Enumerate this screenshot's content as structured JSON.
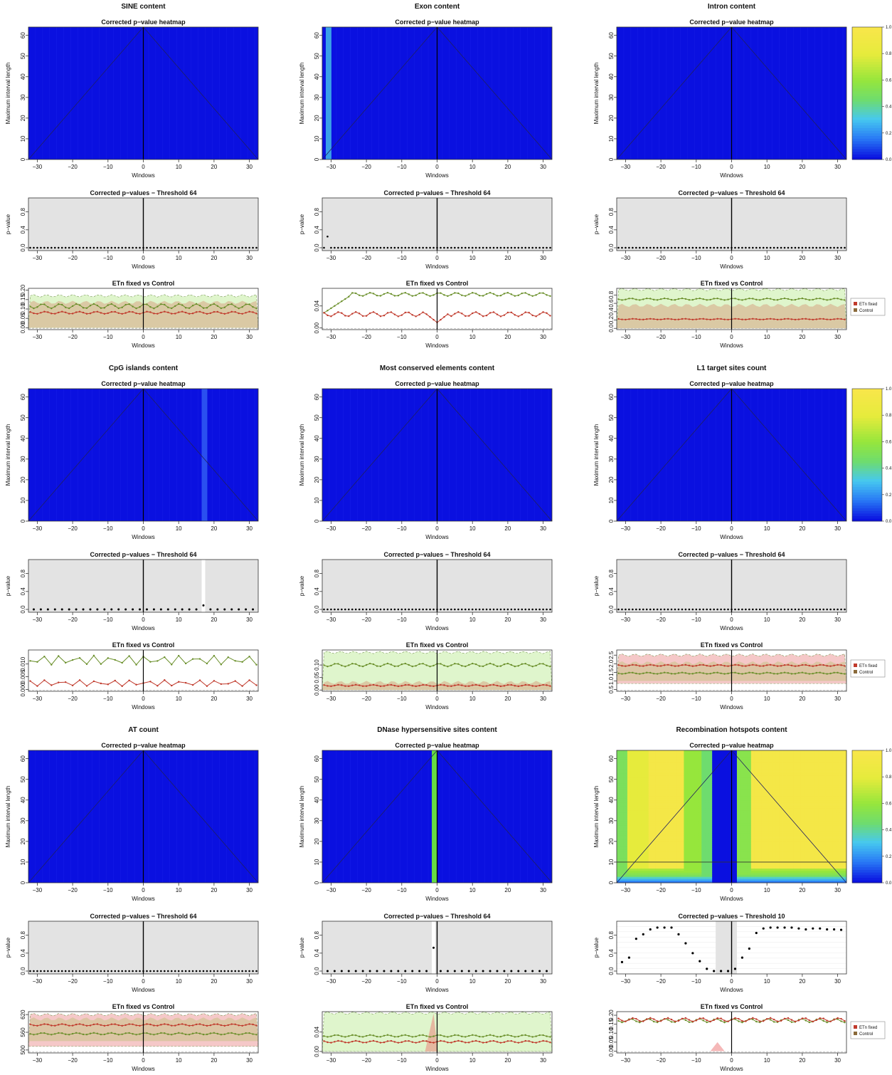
{
  "figure": {
    "panels": [
      {
        "title": "SINE content",
        "heatmap": {
          "title": "Corrected p−value heatmap",
          "mode": "blue",
          "stripes": []
        },
        "pvals": {
          "title": "Corrected p−values − Threshold 64",
          "mode": "zero",
          "band": null,
          "special": [
            [
              -31,
              0.0
            ]
          ]
        },
        "comp": {
          "title": "ETn fixed vs Control",
          "yticks": [
            "0.00",
            "0.05",
            "0.10",
            "0.15",
            "0.20"
          ],
          "ylim": [
            -0.01,
            0.21
          ],
          "red": {
            "base": 0.08,
            "amp": 0.006
          },
          "green": {
            "base": 0.115,
            "amp": 0.012
          },
          "ctrlBand": [
            0.0,
            0.17
          ],
          "ctrlColor": "#dff5cc",
          "etnBand": [
            0.0,
            0.135
          ],
          "legend": false
        }
      },
      {
        "title": "Exon content",
        "heatmap": {
          "title": "Corrected p−value heatmap",
          "mode": "blue",
          "stripes": [
            {
              "w": -31,
              "color": "#3aa0e8"
            }
          ]
        },
        "pvals": {
          "title": "Corrected p−values − Threshold 64",
          "mode": "zero",
          "band": null,
          "special": [
            [
              -31,
              0.25
            ]
          ]
        },
        "comp": {
          "title": "ETn fixed vs Control",
          "yticks": [
            "0.00",
            "0.04"
          ],
          "ylim": [
            -0.003,
            0.072
          ],
          "red": {
            "base": 0.025,
            "amp": 0.004,
            "dip": [
              0,
              0.01
            ]
          },
          "green": {
            "base": 0.061,
            "amp": 0.003,
            "ramp": true
          },
          "ctrlBand": null,
          "ctrlColor": null,
          "etnBand": null,
          "legend": false
        }
      },
      {
        "title": "Intron content",
        "heatmap": {
          "title": "Corrected p−value heatmap",
          "mode": "blue",
          "stripes": []
        },
        "pvals": {
          "title": "Corrected p−values − Threshold 64",
          "mode": "zero",
          "band": null,
          "special": []
        },
        "comp": {
          "title": "ETn fixed vs Control",
          "yticks": [
            "0.0",
            "0.2",
            "0.4",
            "0.6",
            "0.8"
          ],
          "ylim": [
            -0.03,
            0.96
          ],
          "red": {
            "base": 0.22,
            "amp": 0.01
          },
          "green": {
            "base": 0.7,
            "amp": 0.02
          },
          "ctrlBand": [
            0.0,
            0.93
          ],
          "ctrlColor": "#dff5cc",
          "etnBand": [
            0.0,
            0.55
          ],
          "legend": true
        }
      },
      {
        "title": "CpG islands content",
        "heatmap": {
          "title": "Corrected p−value heatmap",
          "mode": "blue",
          "stripes": [
            {
              "w": 17,
              "color": "#2a50f0"
            }
          ]
        },
        "pvals": {
          "title": "Corrected p−values − Threshold 64",
          "mode": "zero",
          "band": [
            17,
            17
          ],
          "special": [
            [
              17,
              0.09
            ]
          ]
        },
        "comp": {
          "title": "ETn fixed vs Control",
          "yticks": [
            "0.000",
            "0.005",
            "0.010"
          ],
          "ylim": [
            -0.0007,
            0.0155
          ],
          "red": {
            "base": 0.0025,
            "amp": 0.0012
          },
          "green": {
            "base": 0.0115,
            "amp": 0.0018
          },
          "ctrlBand": null,
          "ctrlColor": null,
          "etnBand": null,
          "legend": false
        }
      },
      {
        "title": "Most conserved elements content",
        "heatmap": {
          "title": "Corrected p−value heatmap",
          "mode": "blue",
          "stripes": []
        },
        "pvals": {
          "title": "Corrected p−values − Threshold 64",
          "mode": "zero",
          "band": null,
          "special": []
        },
        "comp": {
          "title": "ETn fixed vs Control",
          "yticks": [
            "0.00",
            "0.05",
            "0.10"
          ],
          "ylim": [
            -0.005,
            0.16
          ],
          "red": {
            "base": 0.018,
            "amp": 0.003
          },
          "green": {
            "base": 0.1,
            "amp": 0.006
          },
          "ctrlBand": [
            0.0,
            0.15
          ],
          "ctrlColor": "#dff5cc",
          "etnBand": [
            0.0,
            0.03
          ],
          "legend": false
        }
      },
      {
        "title": "L1 target sites count",
        "heatmap": {
          "title": "Corrected p−value heatmap",
          "mode": "blue",
          "stripes": []
        },
        "pvals": {
          "title": "Corrected p−values − Threshold 64",
          "mode": "zero",
          "band": null,
          "special": []
        },
        "comp": {
          "title": "ETn fixed vs Control",
          "yticks": [
            "0.5",
            "1.0",
            "1.5",
            "2.0",
            "2.5"
          ],
          "ylim": [
            0.4,
            2.8
          ],
          "red": {
            "base": 1.9,
            "amp": 0.04
          },
          "green": {
            "base": 1.45,
            "amp": 0.04
          },
          "ctrlBand": [
            0.85,
            2.5
          ],
          "ctrlColor": "#f5c8c8",
          "etnBand": [
            1.0,
            2.05
          ],
          "legend": true
        }
      },
      {
        "title": "AT count",
        "heatmap": {
          "title": "Corrected p−value heatmap",
          "mode": "blue",
          "stripes": []
        },
        "pvals": {
          "title": "Corrected p−values − Threshold 64",
          "mode": "zero",
          "band": null,
          "special": []
        },
        "comp": {
          "title": "ETn fixed vs Control",
          "yticks": [
            "500",
            "560",
            "620"
          ],
          "ylim": [
            490,
            630
          ],
          "red": {
            "base": 585,
            "amp": 3
          },
          "green": {
            "base": 555,
            "amp": 3
          },
          "ctrlBand": [
            512,
            620
          ],
          "ctrlColor": "#f5c8c8",
          "etnBand": [
            530,
            605
          ],
          "legend": false
        }
      },
      {
        "title": "DNase hypersensitive sites content",
        "heatmap": {
          "title": "Corrected p−value heatmap",
          "mode": "blue",
          "stripes": [
            {
              "w": -1,
              "color": "#66dd44"
            }
          ]
        },
        "pvals": {
          "title": "Corrected p−values − Threshold 64",
          "mode": "zero",
          "band": [
            -1,
            -1
          ],
          "special": [
            [
              -1,
              0.52
            ]
          ]
        },
        "comp": {
          "title": "ETn fixed vs Control",
          "yticks": [
            "0.00",
            "0.04"
          ],
          "ylim": [
            -0.003,
            0.082
          ],
          "red": {
            "base": 0.02,
            "amp": 0.002
          },
          "green": {
            "base": 0.032,
            "amp": 0.002
          },
          "ctrlBand": [
            0.0,
            0.079
          ],
          "ctrlColor": "#dff5cc",
          "etnBand": null,
          "legend": false
        }
      },
      {
        "title": "Recombination hotspots content",
        "heatmap": {
          "title": "Corrected p−value heatmap",
          "mode": "recomb",
          "stripes": []
        },
        "pvals": {
          "title": "Corrected p−values − Threshold 10",
          "mode": "recomb",
          "band": [
            -4,
            1
          ],
          "special": []
        },
        "comp": {
          "title": "ETn fixed vs Control",
          "yticks": [
            "0.00",
            "0.05",
            "0.10",
            "0.15",
            "0.20"
          ],
          "ylim": [
            -0.01,
            0.22
          ],
          "red": {
            "base": 0.175,
            "amp": 0.01
          },
          "green": {
            "base": 0.17,
            "amp": 0.01
          },
          "ctrlBand": null,
          "ctrlColor": null,
          "etnBand": null,
          "legend": true
        }
      }
    ],
    "common": {
      "heat_ylabel": "Maximum interval length",
      "heat_yticks": [
        "0",
        "10",
        "20",
        "30",
        "40",
        "50",
        "60"
      ],
      "xticks": [
        "−30",
        "−20",
        "−10",
        "0",
        "10",
        "20",
        "30"
      ],
      "xlabel": "Windows",
      "pval_ylabel": "p−value",
      "pval_yticks": [
        "0.0",
        "0.4",
        "0.8"
      ],
      "colorbar_ticks": [
        "0.0",
        "0.2",
        "0.4",
        "0.6",
        "0.8",
        "1.0"
      ],
      "legend_labels": [
        "ETn fixed",
        "Control"
      ]
    },
    "colors": {
      "etn": "#c0392b",
      "control": "#6a8f2a",
      "heat_low": "#0a10e0",
      "heat_high": "#f8e64a"
    }
  },
  "chart_data": [
    {
      "type": "heatmap",
      "title": "SINE content — Corrected p−value heatmap",
      "xlabel": "Windows",
      "ylabel": "Maximum interval length",
      "xlim": [
        -32,
        32
      ],
      "ylim": [
        0,
        64
      ],
      "values_summary": "all p−values ≈ 0"
    },
    {
      "type": "scatter",
      "title": "SINE content — Corrected p−values − Threshold 64",
      "xlabel": "Windows",
      "ylabel": "p−value",
      "x": [
        -31,
        0,
        31
      ],
      "y": [
        0,
        0,
        0
      ]
    },
    {
      "type": "line",
      "title": "SINE content — ETn fixed vs Control",
      "xlabel": "Windows",
      "series": [
        {
          "name": "ETn fixed",
          "values_approx": 0.08
        },
        {
          "name": "Control",
          "values_approx": 0.115
        }
      ]
    },
    {
      "type": "heatmap",
      "title": "Exon content — Corrected p−value heatmap",
      "values_summary": "all ≈ 0 except window −31 ≈ 0.25"
    },
    {
      "type": "scatter",
      "title": "Exon content — Corrected p−values − Threshold 64",
      "x": [
        -31
      ],
      "y": [
        0.25
      ]
    },
    {
      "type": "line",
      "title": "Exon content — ETn fixed vs Control",
      "series": [
        {
          "name": "ETn fixed",
          "values_approx": 0.025
        },
        {
          "name": "Control",
          "values_approx": 0.061
        }
      ]
    },
    {
      "type": "line",
      "title": "Intron content — ETn fixed vs Control",
      "series": [
        {
          "name": "ETn fixed",
          "values_approx": 0.22
        },
        {
          "name": "Control",
          "values_approx": 0.7
        }
      ]
    },
    {
      "type": "scatter",
      "title": "CpG islands content — Corrected p−values − Threshold 64",
      "x": [
        17
      ],
      "y": [
        0.09
      ]
    },
    {
      "type": "line",
      "title": "CpG islands content — ETn fixed vs Control",
      "series": [
        {
          "name": "ETn fixed",
          "values_approx": 0.0025
        },
        {
          "name": "Control",
          "values_approx": 0.0115
        }
      ]
    },
    {
      "type": "line",
      "title": "Most conserved elements content — ETn fixed vs Control",
      "series": [
        {
          "name": "ETn fixed",
          "values_approx": 0.018
        },
        {
          "name": "Control",
          "values_approx": 0.1
        }
      ]
    },
    {
      "type": "line",
      "title": "L1 target sites count — ETn fixed vs Control",
      "series": [
        {
          "name": "ETn fixed",
          "values_approx": 1.9
        },
        {
          "name": "Control",
          "values_approx": 1.45
        }
      ]
    },
    {
      "type": "line",
      "title": "AT count — ETn fixed vs Control",
      "series": [
        {
          "name": "ETn fixed",
          "values_approx": 585
        },
        {
          "name": "Control",
          "values_approx": 555
        }
      ]
    },
    {
      "type": "scatter",
      "title": "DNase hypersensitive sites content — Corrected p−values − Threshold 64",
      "x": [
        -1
      ],
      "y": [
        0.52
      ]
    },
    {
      "type": "line",
      "title": "DNase hypersensitive sites content — ETn fixed vs Control",
      "series": [
        {
          "name": "ETn fixed",
          "values_approx": 0.02
        },
        {
          "name": "Control",
          "values_approx": 0.032
        }
      ]
    },
    {
      "type": "scatter",
      "title": "Recombination hotspots content — Corrected p−values − Threshold 10",
      "xlabel": "Windows",
      "ylabel": "p−value",
      "x": [
        -31,
        -29,
        -27,
        -25,
        -23,
        -21,
        -19,
        -17,
        -15,
        -13,
        -11,
        -9,
        -7,
        -5,
        -3,
        -1,
        1,
        3,
        5,
        7,
        9,
        11,
        13,
        15,
        17,
        19,
        21,
        23,
        25,
        27,
        29,
        31
      ],
      "y": [
        0.2,
        0.3,
        0.72,
        0.82,
        0.93,
        0.97,
        0.97,
        0.97,
        0.82,
        0.62,
        0.4,
        0.22,
        0.05,
        0.0,
        0.0,
        0.0,
        0.05,
        0.3,
        0.5,
        0.85,
        0.95,
        0.97,
        0.97,
        0.97,
        0.97,
        0.95,
        0.93,
        0.95,
        0.95,
        0.93,
        0.93,
        0.92
      ]
    },
    {
      "type": "line",
      "title": "Recombination hotspots content — ETn fixed vs Control",
      "series": [
        {
          "name": "ETn fixed",
          "values_approx": 0.175
        },
        {
          "name": "Control",
          "values_approx": 0.17
        }
      ]
    },
    {
      "type": "heatmap",
      "title": "Colorbar",
      "ticks": [
        0.0,
        0.2,
        0.4,
        0.6,
        0.8,
        1.0
      ]
    }
  ]
}
